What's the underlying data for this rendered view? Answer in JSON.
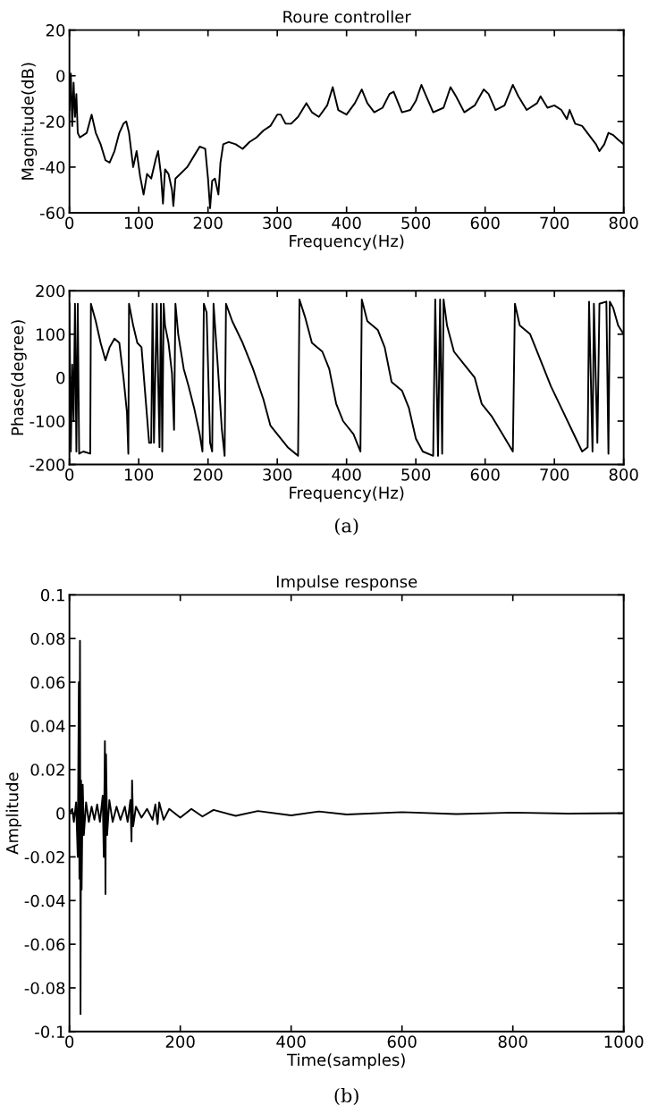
{
  "chart_data": [
    {
      "type": "line",
      "title": "Roure controller",
      "xlabel": "Frequency(Hz)",
      "ylabel": "Magnitude(dB)",
      "xlim": [
        0,
        800
      ],
      "ylim": [
        -60,
        20
      ],
      "xticks": [
        0,
        100,
        200,
        300,
        400,
        500,
        600,
        700,
        800
      ],
      "yticks": [
        -60,
        -40,
        -20,
        0,
        20
      ],
      "grid": false,
      "series": [
        {
          "color": "#000000",
          "x": [
            0,
            2,
            4,
            6,
            8,
            10,
            12,
            15,
            25,
            32,
            38,
            45,
            52,
            58,
            65,
            72,
            78,
            82,
            86,
            92,
            97,
            102,
            107,
            112,
            118,
            125,
            128,
            132,
            135,
            138,
            143,
            148,
            150,
            153,
            160,
            170,
            180,
            188,
            196,
            200,
            203,
            206,
            210,
            215,
            218,
            222,
            230,
            240,
            250,
            260,
            270,
            280,
            290,
            300,
            305,
            312,
            320,
            330,
            342,
            350,
            360,
            372,
            380,
            388,
            400,
            412,
            422,
            430,
            440,
            452,
            462,
            468,
            480,
            492,
            500,
            508,
            515,
            525,
            540,
            550,
            558,
            570,
            585,
            598,
            605,
            615,
            628,
            640,
            648,
            660,
            675,
            680,
            690,
            700,
            710,
            718,
            722,
            730,
            740,
            750,
            760,
            765,
            772,
            778,
            785,
            792,
            800
          ],
          "values": [
            -15,
            1,
            -22,
            -3,
            -18,
            -8,
            -25,
            -27,
            -25,
            -17,
            -25,
            -30,
            -37,
            -38,
            -33,
            -25,
            -21,
            -20,
            -25,
            -40,
            -33,
            -44,
            -52,
            -43,
            -45,
            -36,
            -33,
            -43,
            -56,
            -41,
            -43,
            -50,
            -57,
            -45,
            -43,
            -40,
            -35,
            -31,
            -32,
            -45,
            -58,
            -46,
            -45,
            -52,
            -38,
            -30,
            -29,
            -30,
            -32,
            -29,
            -27,
            -24,
            -22,
            -17,
            -17,
            -21,
            -21,
            -18,
            -12,
            -16,
            -18,
            -13,
            -5,
            -15,
            -17,
            -12,
            -6,
            -12,
            -16,
            -14,
            -8,
            -7,
            -16,
            -15,
            -11,
            -4,
            -9,
            -16,
            -14,
            -5,
            -9,
            -16,
            -13,
            -6,
            -8,
            -15,
            -13,
            -4,
            -9,
            -15,
            -12,
            -9,
            -14,
            -13,
            -15,
            -19,
            -15,
            -21,
            -22,
            -26,
            -30,
            -33,
            -30,
            -25,
            -26,
            -28,
            -30
          ]
        }
      ]
    },
    {
      "type": "line",
      "xlabel": "Frequency(Hz)",
      "ylabel": "Phase(degree)",
      "xlim": [
        0,
        800
      ],
      "ylim": [
        -200,
        200
      ],
      "xticks": [
        0,
        100,
        200,
        300,
        400,
        500,
        600,
        700,
        800
      ],
      "yticks": [
        -200,
        -100,
        0,
        100,
        200
      ],
      "grid": false,
      "annotations": [
        "(a)"
      ],
      "series": [
        {
          "color": "#000000",
          "x": [
            0,
            2,
            4,
            6,
            8,
            10,
            12,
            14,
            20,
            30,
            31,
            38,
            45,
            52,
            58,
            65,
            72,
            78,
            83,
            85,
            86,
            92,
            98,
            104,
            110,
            115,
            118,
            120,
            122,
            126,
            130,
            132,
            134,
            136,
            138,
            143,
            148,
            151,
            153,
            157,
            165,
            172,
            180,
            188,
            192,
            194,
            198,
            203,
            206,
            208,
            214,
            220,
            224,
            226,
            235,
            250,
            265,
            280,
            290,
            300,
            315,
            330,
            332,
            340,
            350,
            365,
            375,
            385,
            395,
            410,
            420,
            422,
            430,
            445,
            455,
            465,
            480,
            490,
            500,
            510,
            525,
            528,
            532,
            535,
            538,
            540,
            545,
            555,
            570,
            585,
            595,
            610,
            625,
            640,
            643,
            650,
            665,
            680,
            695,
            710,
            725,
            740,
            748,
            750,
            755,
            757,
            762,
            765,
            775,
            778,
            780,
            785,
            792,
            800
          ],
          "values": [
            170,
            -170,
            30,
            -100,
            170,
            -170,
            170,
            -175,
            -170,
            -175,
            170,
            130,
            80,
            40,
            70,
            90,
            80,
            0,
            -80,
            -175,
            170,
            120,
            80,
            70,
            -50,
            -150,
            -150,
            170,
            -150,
            170,
            -160,
            170,
            -170,
            170,
            120,
            80,
            10,
            -120,
            170,
            100,
            20,
            -20,
            -70,
            -130,
            -170,
            170,
            150,
            -150,
            -170,
            170,
            30,
            -120,
            -180,
            170,
            130,
            80,
            20,
            -50,
            -110,
            -130,
            -160,
            -180,
            180,
            140,
            80,
            60,
            20,
            -60,
            -100,
            -130,
            -170,
            180,
            130,
            110,
            70,
            -10,
            -30,
            -70,
            -140,
            -170,
            -180,
            180,
            -180,
            180,
            -175,
            180,
            120,
            60,
            30,
            0,
            -60,
            -90,
            -130,
            -170,
            170,
            120,
            100,
            40,
            -20,
            -70,
            -120,
            -170,
            -160,
            175,
            -170,
            170,
            -150,
            170,
            175,
            -175,
            175,
            160,
            120,
            100
          ]
        }
      ]
    },
    {
      "type": "line",
      "title": "Impulse response",
      "xlabel": "Time(samples)",
      "ylabel": "Amplitude",
      "xlim": [
        0,
        1000
      ],
      "ylim": [
        -0.1,
        0.1
      ],
      "xticks": [
        0,
        200,
        400,
        600,
        800,
        1000
      ],
      "yticks": [
        -0.1,
        -0.08,
        -0.06,
        -0.04,
        -0.02,
        0,
        0.02,
        0.04,
        0.06,
        0.08,
        0.1
      ],
      "grid": false,
      "annotations": [
        "(b)"
      ],
      "series": [
        {
          "color": "#000000",
          "x": [
            0,
            5,
            8,
            12,
            15,
            17,
            18,
            19,
            20,
            21,
            22,
            24,
            26,
            30,
            35,
            40,
            45,
            50,
            55,
            60,
            62,
            64,
            65,
            66,
            68,
            72,
            78,
            85,
            92,
            100,
            105,
            110,
            112,
            113,
            115,
            120,
            130,
            140,
            150,
            155,
            159,
            162,
            170,
            180,
            200,
            220,
            240,
            260,
            300,
            340,
            400,
            450,
            500,
            600,
            700,
            800,
            900,
            1000
          ],
          "values": [
            0,
            0.002,
            -0.004,
            0.005,
            -0.02,
            0.06,
            -0.03,
            0.079,
            -0.092,
            0.015,
            -0.035,
            0.013,
            -0.01,
            0.005,
            -0.004,
            0.003,
            -0.003,
            0.004,
            -0.004,
            0.008,
            -0.02,
            0.033,
            -0.037,
            0.027,
            -0.01,
            0.006,
            -0.004,
            0.003,
            -0.003,
            0.003,
            -0.004,
            0.006,
            -0.013,
            0.015,
            -0.006,
            0.003,
            -0.002,
            0.002,
            -0.003,
            0.004,
            -0.005,
            0.005,
            -0.003,
            0.002,
            -0.002,
            0.002,
            -0.0015,
            0.0015,
            -0.0012,
            0.001,
            -0.001,
            0.0008,
            -0.0006,
            0.0005,
            -0.0004,
            0.0003,
            -0.0002,
            0
          ]
        }
      ]
    }
  ]
}
